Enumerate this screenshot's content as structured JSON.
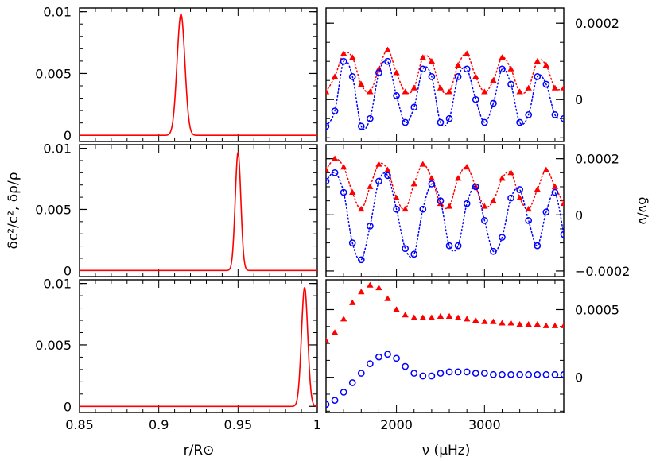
{
  "chart_data": {
    "type": "multi-panel",
    "figure": {
      "left_ylabel": "δc²/c², δρ/ρ",
      "right_ylabel": "δν/ν",
      "left_xlabel": "r/R⊙",
      "right_xlabel": "ν (μHz)"
    },
    "left_panels": [
      {
        "type": "line",
        "x_range": [
          0.85,
          1.0
        ],
        "y_range": [
          -0.0005,
          0.0103
        ],
        "xticks": [
          "0.85",
          "0.9",
          "0.95",
          "1"
        ],
        "yticks": [
          "0",
          "0.005",
          "0.01"
        ],
        "peak": {
          "x": 0.914,
          "y": 0.0098,
          "width": 0.0035
        },
        "color": "#ff0000"
      },
      {
        "type": "line",
        "x_range": [
          0.85,
          1.0
        ],
        "y_range": [
          -0.0005,
          0.0103
        ],
        "xticks": [
          "0.85",
          "0.9",
          "0.95",
          "1"
        ],
        "yticks": [
          "0",
          "0.005",
          "0.01"
        ],
        "peak": {
          "x": 0.95,
          "y": 0.0097,
          "width": 0.0025
        },
        "color": "#ff0000"
      },
      {
        "type": "line",
        "x_range": [
          0.85,
          1.0
        ],
        "y_range": [
          -0.0005,
          0.0103
        ],
        "xticks": [
          "0.85",
          "0.9",
          "0.95",
          "1"
        ],
        "yticks": [
          "0",
          "0.005",
          "0.01"
        ],
        "peak": {
          "x": 0.992,
          "y": 0.0097,
          "width": 0.0028
        },
        "color": "#ff0000"
      }
    ],
    "right_panels": [
      {
        "type": "scatter",
        "x_range": [
          1200,
          3900
        ],
        "y_range": [
          -0.00011,
          0.00024
        ],
        "xticks": [
          "2000",
          "3000"
        ],
        "yticks": [
          "0.0002",
          "0"
        ],
        "ytick_values": [
          0.0002,
          0
        ],
        "series": [
          {
            "marker": "filled-triangle",
            "color": "#ff0000",
            "line": "dotted",
            "x": [
              1200,
              1300,
              1400,
              1500,
              1600,
              1700,
              1800,
              1900,
              2000,
              2100,
              2200,
              2300,
              2400,
              2500,
              2600,
              2700,
              2800,
              2900,
              3000,
              3100,
              3200,
              3300,
              3400,
              3500,
              3600,
              3700,
              3800,
              3900
            ],
            "y": [
              2e-05,
              6e-05,
              0.00012,
              0.00011,
              4e-05,
              2e-05,
              8e-05,
              0.00013,
              7e-05,
              2e-05,
              3e-05,
              0.00011,
              0.0001,
              3e-05,
              2e-05,
              9e-05,
              0.00012,
              6e-05,
              2e-05,
              5e-05,
              0.00011,
              8e-05,
              2e-05,
              3e-05,
              0.0001,
              9e-05,
              3e-05,
              3e-05
            ]
          },
          {
            "marker": "open-circle",
            "color": "#0000ff",
            "line": "dotted",
            "x": [
              1200,
              1300,
              1400,
              1500,
              1600,
              1700,
              1800,
              1900,
              2000,
              2100,
              2200,
              2300,
              2400,
              2500,
              2600,
              2700,
              2800,
              2900,
              3000,
              3100,
              3200,
              3300,
              3400,
              3500,
              3600,
              3700,
              3800,
              3900
            ],
            "y": [
              -7e-05,
              -3e-05,
              0.0001,
              6e-05,
              -7e-05,
              -5e-05,
              7e-05,
              0.0001,
              1e-05,
              -6e-05,
              -2e-05,
              8e-05,
              6e-05,
              -6e-05,
              -5e-05,
              6e-05,
              8e-05,
              0.0,
              -6e-05,
              -1e-05,
              8e-05,
              4e-05,
              -6e-05,
              -4e-05,
              6e-05,
              4e-05,
              -4e-05,
              -5e-05
            ]
          }
        ]
      },
      {
        "type": "scatter",
        "x_range": [
          1200,
          3900
        ],
        "y_range": [
          -0.00022,
          0.00025
        ],
        "xticks": [
          "2000",
          "3000"
        ],
        "yticks": [
          "0.0002",
          "0",
          "−0.0002"
        ],
        "ytick_values": [
          0.0002,
          0,
          -0.0002
        ],
        "series": [
          {
            "marker": "filled-triangle",
            "color": "#ff0000",
            "line": "dotted",
            "x": [
              1200,
              1300,
              1400,
              1500,
              1600,
              1700,
              1800,
              1900,
              2000,
              2100,
              2200,
              2300,
              2400,
              2500,
              2600,
              2700,
              2800,
              2900,
              3000,
              3100,
              3200,
              3300,
              3400,
              3500,
              3600,
              3700,
              3800,
              3900
            ],
            "y": [
              0.00016,
              0.0002,
              0.00017,
              8e-05,
              2e-05,
              0.0001,
              0.00018,
              0.00016,
              6e-05,
              2e-05,
              0.00011,
              0.00018,
              0.00013,
              4e-05,
              3e-05,
              0.00013,
              0.00017,
              0.0001,
              3e-05,
              5e-05,
              0.00013,
              0.00015,
              6e-05,
              2e-05,
              9e-05,
              0.00016,
              0.0001,
              4e-05
            ]
          },
          {
            "marker": "open-circle",
            "color": "#0000ff",
            "line": "dotted",
            "x": [
              1200,
              1300,
              1400,
              1500,
              1600,
              1700,
              1800,
              1900,
              2000,
              2100,
              2200,
              2300,
              2400,
              2500,
              2600,
              2700,
              2800,
              2900,
              3000,
              3100,
              3200,
              3300,
              3400,
              3500,
              3600,
              3700,
              3800,
              3900
            ],
            "y": [
              0.00012,
              0.00015,
              8e-05,
              -0.0001,
              -0.00016,
              -4e-05,
              0.00012,
              0.00014,
              2e-05,
              -0.00012,
              -0.00014,
              2e-05,
              0.00011,
              5e-05,
              -0.00011,
              -0.00011,
              4e-05,
              0.0001,
              -2e-05,
              -0.00013,
              -8e-05,
              6e-05,
              9e-05,
              -2e-05,
              -0.00011,
              1e-05,
              8e-05,
              -7e-05
            ]
          }
        ]
      },
      {
        "type": "scatter",
        "x_range": [
          1200,
          3900
        ],
        "y_range": [
          -0.00026,
          0.00072
        ],
        "xticks": [
          "2000",
          "3000"
        ],
        "yticks": [
          "0.0005",
          "0"
        ],
        "ytick_values": [
          0.0005,
          0
        ],
        "series": [
          {
            "marker": "filled-triangle",
            "color": "#ff0000",
            "line": "none",
            "x": [
              1200,
              1300,
              1400,
              1500,
              1600,
              1700,
              1800,
              1900,
              2000,
              2100,
              2200,
              2300,
              2400,
              2500,
              2600,
              2700,
              2800,
              2900,
              3000,
              3100,
              3200,
              3300,
              3400,
              3500,
              3600,
              3700,
              3800,
              3900
            ],
            "y": [
              0.00027,
              0.00033,
              0.00043,
              0.00055,
              0.00063,
              0.00068,
              0.00066,
              0.00058,
              0.0005,
              0.00046,
              0.00044,
              0.00044,
              0.00044,
              0.00045,
              0.00045,
              0.00044,
              0.00043,
              0.00042,
              0.00041,
              0.00041,
              0.0004,
              0.0004,
              0.00039,
              0.00039,
              0.00039,
              0.00038,
              0.00038,
              0.00038
            ]
          },
          {
            "marker": "open-circle",
            "color": "#0000ff",
            "line": "none",
            "x": [
              1200,
              1300,
              1400,
              1500,
              1600,
              1700,
              1800,
              1900,
              2000,
              2100,
              2200,
              2300,
              2400,
              2500,
              2600,
              2700,
              2800,
              2900,
              3000,
              3100,
              3200,
              3300,
              3400,
              3500,
              3600,
              3700,
              3800,
              3900
            ],
            "y": [
              -0.0002,
              -0.00017,
              -0.00011,
              -4e-05,
              3e-05,
              0.0001,
              0.00015,
              0.00017,
              0.00014,
              8e-05,
              3e-05,
              1e-05,
              1e-05,
              3e-05,
              4e-05,
              4e-05,
              4e-05,
              3e-05,
              3e-05,
              2e-05,
              2e-05,
              2e-05,
              2e-05,
              2e-05,
              2e-05,
              2e-05,
              2e-05,
              2e-05
            ]
          }
        ]
      }
    ]
  }
}
